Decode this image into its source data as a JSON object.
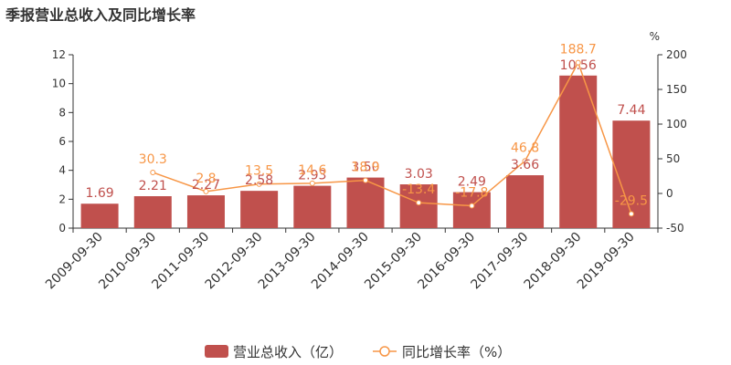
{
  "title": "季报营业总收入及同比增长率",
  "chart_data": {
    "type": "bar",
    "categories": [
      "2009-09-30",
      "2010-09-30",
      "2011-09-30",
      "2012-09-30",
      "2013-09-30",
      "2014-09-30",
      "2015-09-30",
      "2016-09-30",
      "2017-09-30",
      "2018-09-30",
      "2019-09-30"
    ],
    "series": [
      {
        "name": "营业总收入（亿）",
        "type": "bar",
        "axis": "left",
        "color": "#c0504d",
        "values": [
          1.69,
          2.21,
          2.27,
          2.58,
          2.93,
          3.5,
          3.03,
          2.49,
          3.66,
          10.56,
          7.44
        ],
        "labels": [
          "1.69",
          "2.21",
          "2.27",
          "2.58",
          "2.93",
          "3.50",
          "3.03",
          "2.49",
          "3.66",
          "10.56",
          "7.44"
        ]
      },
      {
        "name": "同比增长率（%）",
        "type": "line",
        "axis": "right",
        "color": "#f79646",
        "values": [
          null,
          30.3,
          2.8,
          13.5,
          14.6,
          18.9,
          -13.4,
          -17.8,
          46.8,
          188.7,
          -29.5
        ],
        "labels": [
          "",
          "30.3",
          "2.8",
          "13.5",
          "14.6",
          "18.9",
          "-13.4",
          "-17.8",
          "46.8",
          "188.7",
          "-29.5"
        ]
      }
    ],
    "y_left": {
      "ticks": [
        "0",
        "2",
        "4",
        "6",
        "8",
        "10",
        "12"
      ],
      "range": [
        0,
        12
      ]
    },
    "y_right": {
      "ticks": [
        "-50",
        "0",
        "50",
        "100",
        "150",
        "200"
      ],
      "range": [
        -50,
        200
      ],
      "unit": "%"
    },
    "legend": {
      "position": "bottom-center",
      "bar_label": "营业总收入（亿）",
      "line_label": "同比增长率（%）"
    },
    "grid": false
  }
}
